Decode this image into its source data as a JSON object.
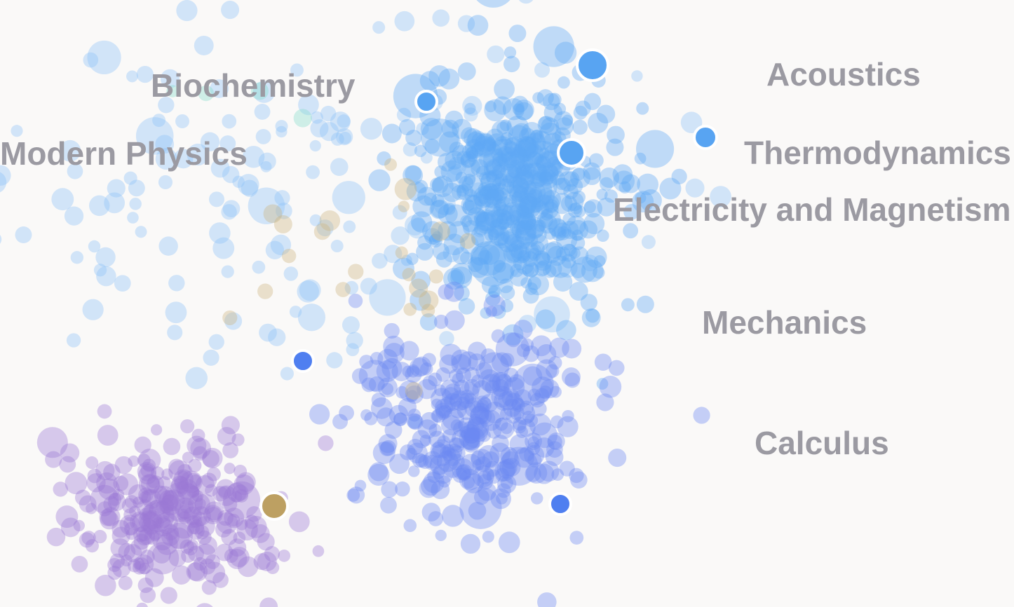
{
  "chart_data": {
    "type": "scatter",
    "title": "",
    "xlabel": "",
    "ylabel": "",
    "xlim": [
      0,
      144.6
    ],
    "ylim": [
      0,
      86.6
    ],
    "y_inverted": true,
    "grid": false,
    "axes_visible": false,
    "legend": "none",
    "point_opacity": 0.38,
    "clusters": [
      {
        "color": "#8ec2f7",
        "center": [
          42,
          28
        ],
        "spread": [
          34,
          24
        ],
        "count": 170
      },
      {
        "color": "#5fa8f4",
        "center": [
          74,
          28
        ],
        "spread": [
          12,
          13
        ],
        "count": 480
      },
      {
        "color": "#6c8af2",
        "center": [
          68,
          60
        ],
        "spread": [
          14,
          11
        ],
        "count": 330
      },
      {
        "color": "#9a78d6",
        "center": [
          24,
          73
        ],
        "spread": [
          13,
          9
        ],
        "count": 260
      },
      {
        "color": "#cdb582",
        "center": [
          55,
          38
        ],
        "spread": [
          14,
          12
        ],
        "count": 22
      },
      {
        "color": "#86dccb",
        "center": [
          30,
          12
        ],
        "spread": [
          16,
          8
        ],
        "count": 4
      }
    ],
    "cluster_labels": [
      {
        "text": "Biochemistry",
        "x": 21.5,
        "y": 12.5
      },
      {
        "text": "Modern Physics",
        "x": -15,
        "y": 22.2
      },
      {
        "text": "Acoustics",
        "x": 109.3,
        "y": 10.9
      },
      {
        "text": "Thermodynamics",
        "x": 115.8,
        "y": 22.1
      },
      {
        "text": "Electricity and Magnetism",
        "x": 112.9,
        "y": 30.2
      },
      {
        "text": "Mechanics",
        "x": 100.1,
        "y": 46.3
      },
      {
        "text": "Calculus",
        "x": 107.6,
        "y": 63.5
      }
    ],
    "highlighted_points": [
      {
        "x": 84.5,
        "y": 9.3,
        "size": 2.2,
        "color": "#58a4f2"
      },
      {
        "x": 60.8,
        "y": 14.5,
        "size": 1.5,
        "color": "#58a4f2"
      },
      {
        "x": 81.5,
        "y": 21.8,
        "size": 1.9,
        "color": "#58a4f2"
      },
      {
        "x": 100.6,
        "y": 19.6,
        "size": 1.6,
        "color": "#58a4f2"
      },
      {
        "x": 43.2,
        "y": 51.5,
        "size": 1.5,
        "color": "#4f7ff0"
      },
      {
        "x": 79.9,
        "y": 71.9,
        "size": 1.5,
        "color": "#4f7ff0"
      },
      {
        "x": 39.1,
        "y": 72.2,
        "size": 1.9,
        "color": "#bda062"
      }
    ]
  }
}
